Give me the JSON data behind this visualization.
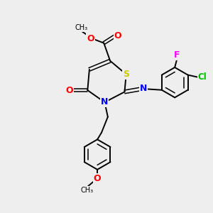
{
  "bg_color": "#eeeeee",
  "bond_color": "#000000",
  "atom_colors": {
    "S": "#cccc00",
    "N": "#0000ff",
    "O": "#ff0000",
    "Cl": "#00bb00",
    "F": "#ff00ff",
    "C": "#000000"
  },
  "figsize": [
    3.0,
    3.0
  ],
  "dpi": 100
}
